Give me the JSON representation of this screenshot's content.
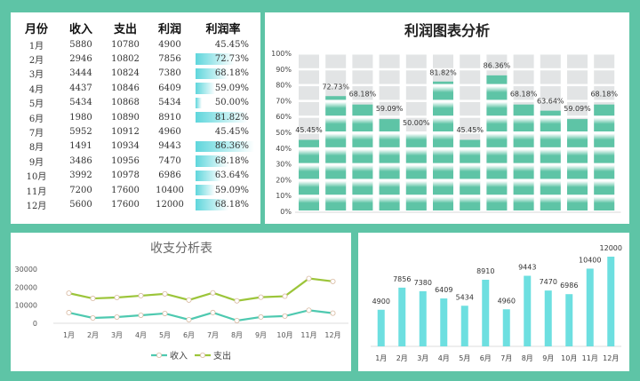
{
  "table": {
    "headers": [
      "月份",
      "收入",
      "支出",
      "利润",
      "利润率"
    ],
    "rows": [
      [
        "1月",
        "5880",
        "10780",
        "4900",
        "45.45%"
      ],
      [
        "2月",
        "2946",
        "10802",
        "7856",
        "72.73%"
      ],
      [
        "3月",
        "3444",
        "10824",
        "7380",
        "68.18%"
      ],
      [
        "4月",
        "4437",
        "10846",
        "6409",
        "59.09%"
      ],
      [
        "5月",
        "5434",
        "10868",
        "5434",
        "50.00%"
      ],
      [
        "6月",
        "1980",
        "10890",
        "8910",
        "81.82%"
      ],
      [
        "7月",
        "5952",
        "10912",
        "4960",
        "45.45%"
      ],
      [
        "8月",
        "1491",
        "10934",
        "9443",
        "86.36%"
      ],
      [
        "9月",
        "3486",
        "10956",
        "7470",
        "68.18%"
      ],
      [
        "10月",
        "3992",
        "10978",
        "6986",
        "63.64%"
      ],
      [
        "11月",
        "7200",
        "17600",
        "10400",
        "59.09%"
      ],
      [
        "12月",
        "5600",
        "17600",
        "12000",
        "68.18%"
      ]
    ],
    "rate_values": [
      45.45,
      72.73,
      68.18,
      59.09,
      50.0,
      81.82,
      45.45,
      86.36,
      68.18,
      63.64,
      59.09,
      68.18
    ],
    "databar_color": "#5fd6dc"
  },
  "chart_data": [
    {
      "type": "bar",
      "title": "利润图表分析",
      "categories": [
        "1月",
        "2月",
        "3月",
        "4月",
        "5月",
        "6月",
        "7月",
        "8月",
        "9月",
        "10月",
        "11月",
        "12月"
      ],
      "values": [
        45.45,
        72.73,
        68.18,
        59.09,
        50.0,
        81.82,
        45.45,
        86.36,
        68.18,
        63.64,
        59.09,
        68.18
      ],
      "data_labels": [
        "45.45%",
        "72.73%",
        "68.18%",
        "59.09%",
        "50.00%",
        "81.82%",
        "45.45%",
        "86.36%",
        "68.18%",
        "63.64%",
        "59.09%",
        "68.18%"
      ],
      "yticks": [
        "0%",
        "10%",
        "20%",
        "30%",
        "40%",
        "50%",
        "60%",
        "70%",
        "80%",
        "90%",
        "100%"
      ],
      "ylim": [
        0,
        100
      ],
      "colors": {
        "fill": "#5ec4a6",
        "background": "#e2e4e5"
      }
    },
    {
      "type": "line",
      "title": "收支分析表",
      "stacked": true,
      "categories": [
        "1月",
        "2月",
        "3月",
        "4月",
        "5月",
        "6月",
        "7月",
        "8月",
        "9月",
        "10月",
        "11月",
        "12月"
      ],
      "series": [
        {
          "name": "收入",
          "values": [
            5880,
            2946,
            3444,
            4437,
            5434,
            1980,
            5952,
            1491,
            3486,
            3992,
            7200,
            5600
          ],
          "color": "#4ec9b0"
        },
        {
          "name": "支出",
          "values": [
            10780,
            10802,
            10824,
            10846,
            10868,
            10890,
            10912,
            10934,
            10956,
            10978,
            17600,
            17600
          ],
          "color": "#9cc53a"
        }
      ],
      "yticks": [
        "0",
        "10000",
        "20000",
        "30000"
      ],
      "ylim": [
        0,
        30000
      ],
      "legend": "bottom"
    },
    {
      "type": "bar",
      "categories": [
        "1月",
        "2月",
        "3月",
        "4月",
        "5月",
        "6月",
        "7月",
        "8月",
        "9月",
        "10月",
        "11月",
        "12月"
      ],
      "values": [
        4900,
        7856,
        7380,
        6409,
        5434,
        8910,
        4960,
        9443,
        7470,
        6986,
        10400,
        12000
      ],
      "data_labels": [
        "4900",
        "7856",
        "7380",
        "6409",
        "5434",
        "8910",
        "4960",
        "9443",
        "7470",
        "6986",
        "10400",
        "12000"
      ],
      "ylim": [
        0,
        12000
      ],
      "color": "#6ddfe0"
    }
  ]
}
